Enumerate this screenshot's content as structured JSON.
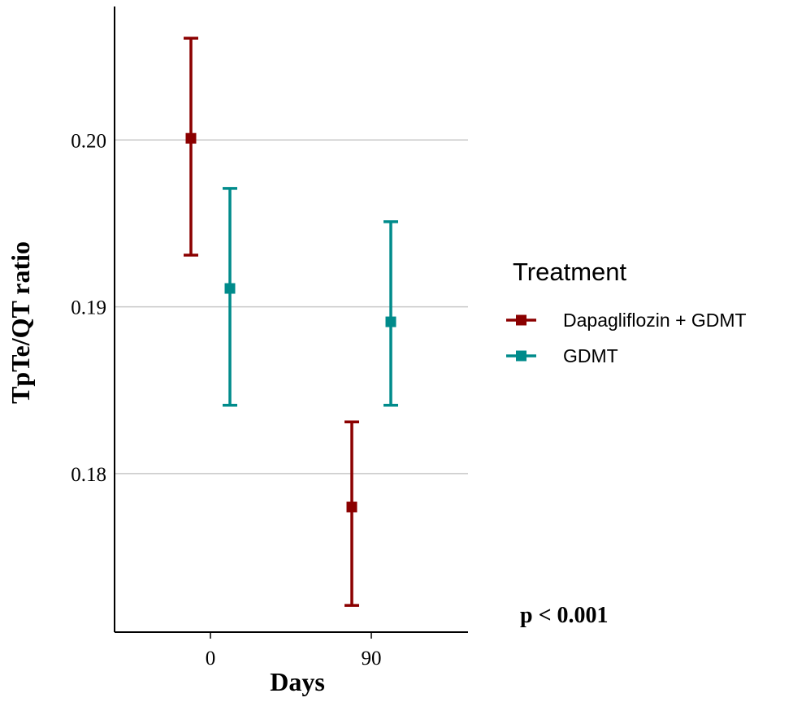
{
  "chart_data": {
    "type": "errorbar",
    "title": "",
    "xlabel": "Days",
    "ylabel": "TpTe/QT ratio",
    "categories": [
      "0",
      "90"
    ],
    "ylim": [
      0.1705,
      0.208
    ],
    "yticks": [
      0.18,
      0.19,
      0.2
    ],
    "ytick_labels": [
      "0.18",
      "0.19",
      "0.20"
    ],
    "grid": "horizontal",
    "legend": {
      "title": "Treatment",
      "position": "right"
    },
    "series": [
      {
        "name": "Dapagliflozin + GDMT",
        "color": "#8b0000",
        "points": [
          {
            "category": "0",
            "mean": 0.2001,
            "lower": 0.1931,
            "upper": 0.2061
          },
          {
            "category": "90",
            "mean": 0.178,
            "lower": 0.1721,
            "upper": 0.1831
          }
        ]
      },
      {
        "name": "GDMT",
        "color": "#008b8b",
        "points": [
          {
            "category": "0",
            "mean": 0.1911,
            "lower": 0.1841,
            "upper": 0.1971
          },
          {
            "category": "90",
            "mean": 0.1891,
            "lower": 0.1841,
            "upper": 0.1951
          }
        ]
      }
    ],
    "annotations": [
      "p < 0.001"
    ]
  }
}
